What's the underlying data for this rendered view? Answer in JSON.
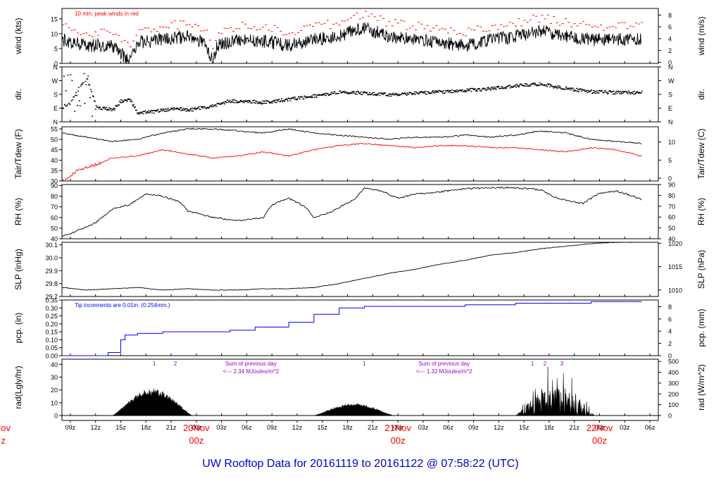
{
  "page": {
    "title": "UW Rooftop Data for 20161119  to  20161122 @ 07:58:22  (UTC)",
    "colors": {
      "black": "#000000",
      "red": "#ff0000",
      "blue": "#0000ff",
      "title": "#0000cc",
      "purple": "#9900cc"
    }
  },
  "chart_data": {
    "type": "line",
    "x_ticks": [
      "09z",
      "12z",
      "15z",
      "18z",
      "21z",
      "00z",
      "03z",
      "06z",
      "09z",
      "12z",
      "15z",
      "18z",
      "21z",
      "00z",
      "03z",
      "06z",
      "09z",
      "12z",
      "15z",
      "18z",
      "21z",
      "00z",
      "03z",
      "06z"
    ],
    "date_labels": [
      {
        "date": "20Nov",
        "hour": "00z"
      },
      {
        "date": "21Nov",
        "hour": "00z"
      },
      {
        "date": "22Nov",
        "hour": "00z"
      }
    ],
    "clipped_left_date": {
      "date": "Nov",
      "hour": "z"
    },
    "panels": [
      {
        "id": "wind",
        "ylabel_left": "wind (kts)",
        "ylabel_right": "wind (m/s)",
        "left_ticks": [
          "0",
          "5",
          "10",
          "15"
        ],
        "right_ticks": [
          "0",
          "2",
          "4",
          "6",
          "8"
        ],
        "ylim": [
          0,
          18.5
        ],
        "annotation": "10 min. peak winds in red",
        "series": [
          {
            "name": "wind speed",
            "color": "#000000",
            "keypoints": [
              [
                0,
                8
              ],
              [
                3,
                6
              ],
              [
                6,
                6
              ],
              [
                8,
                0.5
              ],
              [
                9,
                7
              ],
              [
                12,
                8
              ],
              [
                15,
                9
              ],
              [
                17,
                7
              ],
              [
                18,
                0.5
              ],
              [
                18.5,
                6
              ],
              [
                21,
                8
              ],
              [
                24,
                7.5
              ],
              [
                27,
                6
              ],
              [
                30,
                8
              ],
              [
                33,
                9
              ],
              [
                34.5,
                11
              ],
              [
                36,
                12
              ],
              [
                39,
                9
              ],
              [
                42,
                8
              ],
              [
                45,
                7
              ],
              [
                48,
                6
              ],
              [
                51,
                8
              ],
              [
                54,
                9
              ],
              [
                57,
                11
              ],
              [
                60,
                9
              ],
              [
                63,
                8
              ],
              [
                66,
                8
              ],
              [
                69,
                8
              ]
            ]
          },
          {
            "name": "10 min. peak winds",
            "color": "#ff0000",
            "offset": 3
          }
        ]
      },
      {
        "id": "dir",
        "ylabel_left": "dir.",
        "ylabel_right": "dir.",
        "left_ticks": [
          "N",
          "E",
          "S",
          "W",
          "N"
        ],
        "right_ticks": [
          "N",
          "E",
          "S",
          "W",
          "N"
        ],
        "ylim": [
          0,
          360
        ],
        "series": [
          {
            "name": "wind direction",
            "color": "#000000",
            "keypoints": [
              [
                0,
                100
              ],
              [
                1,
                130
              ],
              [
                2,
                230
              ],
              [
                3,
                280
              ],
              [
                4,
                100
              ],
              [
                6,
                80
              ],
              [
                7,
                140
              ],
              [
                8,
                150
              ],
              [
                9,
                60
              ],
              [
                11,
                70
              ],
              [
                13,
                90
              ],
              [
                15,
                80
              ],
              [
                18,
                110
              ],
              [
                20,
                140
              ],
              [
                24,
                130
              ],
              [
                27,
                150
              ],
              [
                30,
                170
              ],
              [
                33,
                200
              ],
              [
                36,
                190
              ],
              [
                39,
                180
              ],
              [
                42,
                190
              ],
              [
                45,
                200
              ],
              [
                48,
                210
              ],
              [
                51,
                220
              ],
              [
                54,
                240
              ],
              [
                57,
                250
              ],
              [
                60,
                220
              ],
              [
                63,
                200
              ],
              [
                66,
                195
              ],
              [
                69,
                195
              ]
            ]
          }
        ]
      },
      {
        "id": "temp",
        "ylabel_left": "Tair/Tdew (F)",
        "ylabel_right": "Tair/Tdew (C)",
        "left_ticks": [
          "30",
          "35",
          "40",
          "45",
          "50",
          "55"
        ],
        "right_ticks": [
          "0",
          "5",
          "10"
        ],
        "ylim": [
          30,
          56
        ],
        "series": [
          {
            "name": "Tair",
            "color": "#000000",
            "keypoints": [
              [
                0,
                53
              ],
              [
                3,
                51
              ],
              [
                6,
                49
              ],
              [
                9,
                50
              ],
              [
                12,
                53
              ],
              [
                15,
                55
              ],
              [
                18,
                55
              ],
              [
                21,
                54
              ],
              [
                24,
                53
              ],
              [
                27,
                55
              ],
              [
                30,
                53
              ],
              [
                33,
                52
              ],
              [
                36,
                51
              ],
              [
                39,
                50
              ],
              [
                42,
                51
              ],
              [
                45,
                51
              ],
              [
                48,
                52
              ],
              [
                51,
                51
              ],
              [
                54,
                52
              ],
              [
                57,
                54
              ],
              [
                60,
                53
              ],
              [
                63,
                50
              ],
              [
                66,
                49
              ],
              [
                69,
                48
              ]
            ]
          },
          {
            "name": "Tdew",
            "color": "#ff0000",
            "keypoints": [
              [
                0,
                30
              ],
              [
                2,
                35
              ],
              [
                4,
                38
              ],
              [
                6,
                41
              ],
              [
                9,
                42
              ],
              [
                12,
                45
              ],
              [
                15,
                43
              ],
              [
                18,
                41
              ],
              [
                21,
                42
              ],
              [
                24,
                44
              ],
              [
                27,
                42
              ],
              [
                30,
                45
              ],
              [
                33,
                47
              ],
              [
                36,
                48
              ],
              [
                39,
                47
              ],
              [
                42,
                46
              ],
              [
                45,
                47
              ],
              [
                48,
                47
              ],
              [
                51,
                46
              ],
              [
                54,
                46
              ],
              [
                57,
                45
              ],
              [
                60,
                44
              ],
              [
                63,
                46
              ],
              [
                66,
                45
              ],
              [
                69,
                42
              ]
            ]
          }
        ]
      },
      {
        "id": "rh",
        "ylabel_left": "RH (%)",
        "ylabel_right": "RH (%)",
        "left_ticks": [
          "40",
          "50",
          "60",
          "70",
          "80",
          "90"
        ],
        "right_ticks": [
          "40",
          "50",
          "60",
          "70",
          "80",
          "90"
        ],
        "ylim": [
          40,
          91
        ],
        "series": [
          {
            "name": "RH",
            "color": "#000000",
            "keypoints": [
              [
                0,
                42
              ],
              [
                2,
                48
              ],
              [
                4,
                55
              ],
              [
                6,
                68
              ],
              [
                8,
                72
              ],
              [
                10,
                82
              ],
              [
                12,
                80
              ],
              [
                14,
                75
              ],
              [
                15,
                66
              ],
              [
                18,
                60
              ],
              [
                21,
                57
              ],
              [
                24,
                60
              ],
              [
                25,
                72
              ],
              [
                27,
                78
              ],
              [
                29,
                70
              ],
              [
                30,
                60
              ],
              [
                32,
                65
              ],
              [
                35,
                78
              ],
              [
                36,
                88
              ],
              [
                38,
                85
              ],
              [
                40,
                78
              ],
              [
                42,
                82
              ],
              [
                45,
                84
              ],
              [
                48,
                87
              ],
              [
                51,
                88
              ],
              [
                54,
                88
              ],
              [
                57,
                86
              ],
              [
                59,
                78
              ],
              [
                62,
                73
              ],
              [
                64,
                83
              ],
              [
                66,
                85
              ],
              [
                68,
                80
              ],
              [
                69,
                77
              ]
            ]
          }
        ]
      },
      {
        "id": "slp",
        "ylabel_left": "SLP (inHg)",
        "ylabel_right": "SLP (hPa)",
        "left_ticks": [
          "29.7",
          "29.8",
          "29.9",
          "30.0",
          "30.1"
        ],
        "right_ticks": [
          "1010",
          "1015",
          "1020"
        ],
        "ylim": [
          29.7,
          30.12
        ],
        "series": [
          {
            "name": "SLP",
            "color": "#000000",
            "keypoints": [
              [
                0,
                29.77
              ],
              [
                3,
                29.75
              ],
              [
                6,
                29.76
              ],
              [
                9,
                29.77
              ],
              [
                12,
                29.75
              ],
              [
                15,
                29.76
              ],
              [
                18,
                29.75
              ],
              [
                21,
                29.75
              ],
              [
                24,
                29.76
              ],
              [
                27,
                29.76
              ],
              [
                30,
                29.77
              ],
              [
                33,
                29.8
              ],
              [
                36,
                29.84
              ],
              [
                39,
                29.88
              ],
              [
                42,
                29.91
              ],
              [
                45,
                29.95
              ],
              [
                48,
                29.98
              ],
              [
                51,
                30.02
              ],
              [
                54,
                30.04
              ],
              [
                57,
                30.07
              ],
              [
                60,
                30.09
              ],
              [
                63,
                30.11
              ],
              [
                66,
                30.12
              ],
              [
                69,
                30.12
              ]
            ]
          }
        ]
      },
      {
        "id": "pcp",
        "ylabel_left": "pcp. (in)",
        "ylabel_right": "pcp. (mm)",
        "left_ticks": [
          "0.00",
          "0.05",
          "0.10",
          "0.15",
          "0.20",
          "0.25",
          "0.30",
          "0.35"
        ],
        "right_ticks": [
          "0",
          "2",
          "4",
          "6",
          "8"
        ],
        "ylim": [
          0,
          0.35
        ],
        "annotation": "Tip increments are 0.01in. (0.254mm.)",
        "series": [
          {
            "name": "cumulative precipitation",
            "color": "#0000ff",
            "keypoints": [
              [
                0,
                0
              ],
              [
                4.5,
                0
              ],
              [
                5.5,
                0.02
              ],
              [
                7,
                0.1
              ],
              [
                7.5,
                0.13
              ],
              [
                9,
                0.14
              ],
              [
                12,
                0.15
              ],
              [
                20,
                0.16
              ],
              [
                23,
                0.18
              ],
              [
                27,
                0.21
              ],
              [
                30,
                0.26
              ],
              [
                33,
                0.3
              ],
              [
                36,
                0.31
              ],
              [
                42,
                0.31
              ],
              [
                48,
                0.32
              ],
              [
                54,
                0.33
              ],
              [
                60,
                0.33
              ],
              [
                63,
                0.34
              ],
              [
                69,
                0.34
              ]
            ]
          }
        ]
      },
      {
        "id": "rad",
        "ylabel_left": "rad(Lgly/hr)",
        "ylabel_right": "rad (W/m^2)",
        "left_ticks": [
          "0",
          "10",
          "20",
          "30",
          "40"
        ],
        "right_ticks": [
          "0",
          "100",
          "200",
          "300",
          "400",
          "500"
        ],
        "ylim": [
          0,
          44
        ],
        "annotations": [
          {
            "text": "1",
            "hour": 11
          },
          {
            "text": "2",
            "hour": 13.5
          },
          {
            "text": "Sum of previous day",
            "hour": 22.5
          },
          {
            "text": "<--- 2.34 MJoules/m^2",
            "hour": 22.5
          },
          {
            "text": "1",
            "hour": 36
          },
          {
            "text": "Sum of previous day",
            "hour": 45.5
          },
          {
            "text": "<--- 1.32 MJoules/m^2",
            "hour": 45.5
          },
          {
            "text": "1",
            "hour": 56
          },
          {
            "text": "2",
            "hour": 57.5
          },
          {
            "text": "3",
            "hour": 59.5
          }
        ],
        "series": [
          {
            "name": "solar radiation",
            "color": "#000000",
            "filled": true,
            "days": [
              {
                "start": 6,
                "end": 15.5,
                "peak": 20
              },
              {
                "start": 30,
                "end": 39.5,
                "peak": 9
              },
              {
                "start": 54,
                "end": 63.5,
                "peak": 42
              }
            ]
          }
        ]
      }
    ]
  }
}
